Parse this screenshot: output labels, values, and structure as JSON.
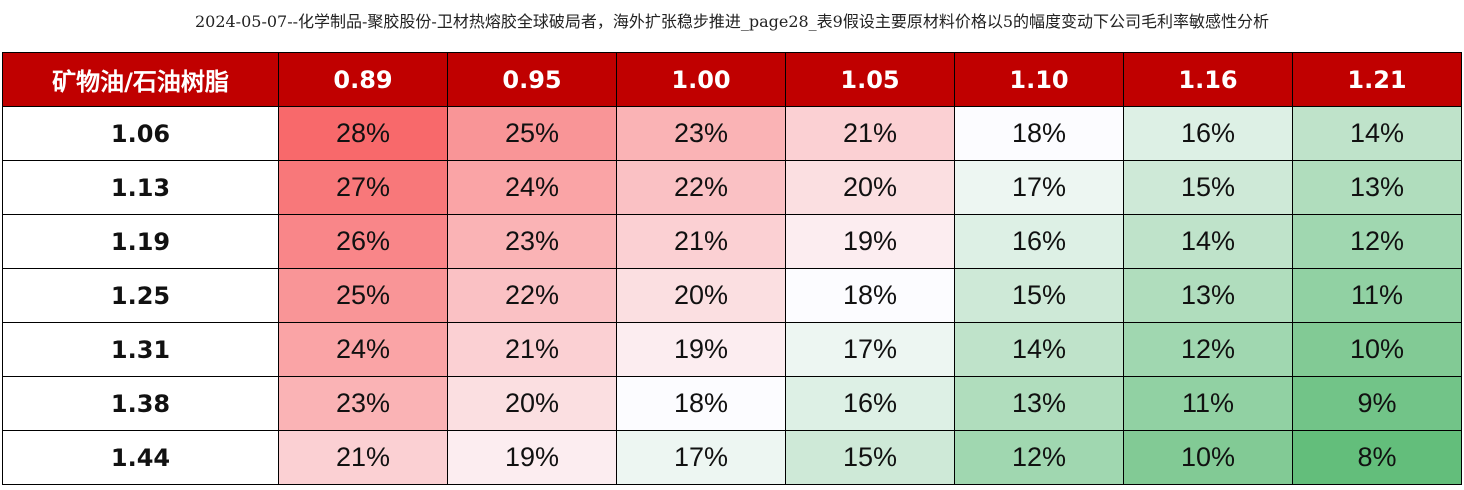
{
  "caption": "2024-05-07--化学制品-聚胶股份-卫材热熔胶全球破局者，海外扩张稳步推进_page28_表9假设主要原材料价格以5的幅度变动下公司毛利率敏感性分析",
  "table": {
    "corner_header": "矿物油/石油树脂",
    "column_headers": [
      "0.89",
      "0.95",
      "1.00",
      "1.05",
      "1.10",
      "1.16",
      "1.21"
    ],
    "rows": [
      {
        "label": "1.06",
        "values": [
          "28%",
          "25%",
          "23%",
          "21%",
          "18%",
          "16%",
          "14%"
        ]
      },
      {
        "label": "1.13",
        "values": [
          "27%",
          "24%",
          "22%",
          "20%",
          "17%",
          "15%",
          "13%"
        ]
      },
      {
        "label": "1.19",
        "values": [
          "26%",
          "23%",
          "21%",
          "19%",
          "16%",
          "14%",
          "12%"
        ]
      },
      {
        "label": "1.25",
        "values": [
          "25%",
          "22%",
          "20%",
          "18%",
          "15%",
          "13%",
          "11%"
        ]
      },
      {
        "label": "1.31",
        "values": [
          "24%",
          "21%",
          "19%",
          "17%",
          "14%",
          "12%",
          "10%"
        ]
      },
      {
        "label": "1.38",
        "values": [
          "23%",
          "20%",
          "18%",
          "16%",
          "13%",
          "11%",
          "9%"
        ]
      },
      {
        "label": "1.44",
        "values": [
          "21%",
          "19%",
          "17%",
          "15%",
          "12%",
          "10%",
          "8%"
        ]
      }
    ]
  },
  "colors": {
    "header_bg": "#c00000",
    "header_text": "#ffffff",
    "scale_high": "#f8696b",
    "scale_mid": "#fcfcff",
    "scale_low": "#63be7b"
  }
}
